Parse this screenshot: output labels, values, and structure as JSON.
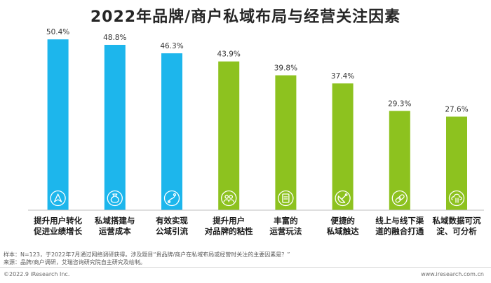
{
  "title": "2022年品牌/商户私域布局与经营关注因素",
  "chart_data": {
    "type": "bar",
    "title": "2022年品牌/商户私域布局与经营关注因素",
    "unit": "%",
    "categories": [
      [
        "提升用户转化",
        "促进业绩增长"
      ],
      [
        "私域搭建与",
        "运营成本"
      ],
      [
        "有效实现",
        "公域引流"
      ],
      [
        "提升用户",
        "对品牌的粘性"
      ],
      [
        "丰富的",
        "运营玩法"
      ],
      [
        "便捷的",
        "私域触达"
      ],
      [
        "线上与线下渠",
        "道的融合打通"
      ],
      [
        "私域数据可沉",
        "淀、可分析"
      ]
    ],
    "values": [
      50.4,
      48.8,
      46.3,
      43.9,
      39.8,
      37.4,
      29.3,
      27.6
    ],
    "value_labels": [
      "50.4%",
      "48.8%",
      "46.3%",
      "43.9%",
      "39.8%",
      "37.4%",
      "29.3%",
      "27.6%"
    ],
    "icons": [
      "navigation-arrow-icon",
      "money-bag-icon",
      "traffic-flow-icon",
      "users-icon",
      "document-icon",
      "satellite-dish-icon",
      "link-icon",
      "cloud-data-icon"
    ],
    "bar_colors": [
      "#1DB6EC",
      "#1DB6EC",
      "#1DB6EC",
      "#8DC21F",
      "#8DC21F",
      "#8DC21F",
      "#8DC21F",
      "#8DC21F"
    ],
    "ylim": [
      0,
      55
    ],
    "grid": false,
    "legend": "none"
  },
  "notes": {
    "sample": "样本：N=123，于2022年7月通过网络调研获得。涉及题目“贵品牌/商户在私域布局或经营时关注的主要因素是？”",
    "source": "来源：品牌/商户调研，艾瑞咨询研究院自主研究及绘制。"
  },
  "footer": {
    "copyright": "©2022.9 iResearch Inc.",
    "website": "www.iresearch.com.cn"
  }
}
